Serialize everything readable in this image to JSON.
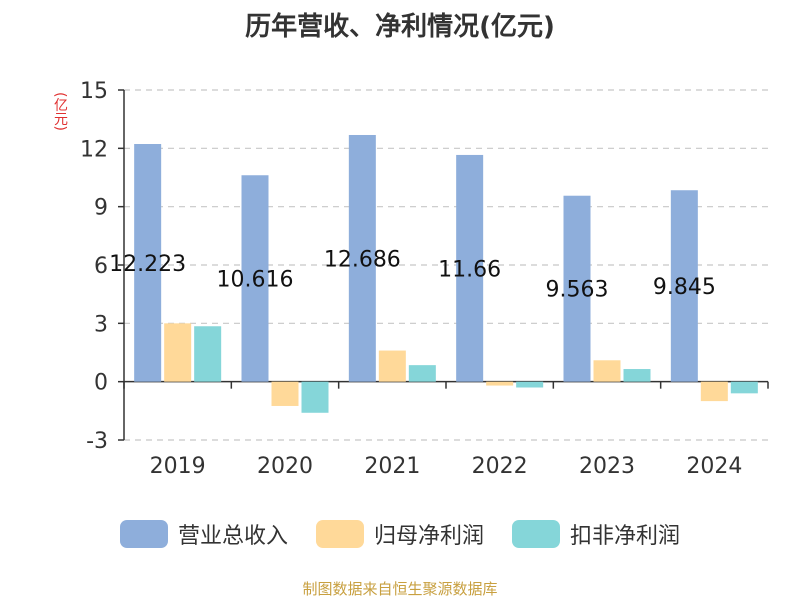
{
  "title": "历年营收、净利情况(亿元)",
  "unit_label": "(亿元)",
  "source": "制图数据来自恒生聚源数据库",
  "colors": {
    "revenue": "#8eaedb",
    "net_profit": "#ffd999",
    "deducted_profit": "#85d6d9",
    "axis": "#333333",
    "grid": "#c8c8c8"
  },
  "chart_data": {
    "type": "bar",
    "categories": [
      "2019",
      "2020",
      "2021",
      "2022",
      "2023",
      "2024"
    ],
    "series": [
      {
        "name": "营业总收入",
        "values": [
          12.223,
          10.616,
          12.686,
          11.66,
          9.563,
          9.845
        ],
        "labels": [
          "12.223",
          "10.616",
          "12.686",
          "11.66",
          "9.563",
          "9.845"
        ]
      },
      {
        "name": "归母净利润",
        "values": [
          3.0,
          -1.25,
          1.6,
          -0.2,
          1.1,
          -1.0
        ]
      },
      {
        "name": "扣非净利润",
        "values": [
          2.85,
          -1.6,
          0.85,
          -0.3,
          0.65,
          -0.6
        ]
      }
    ],
    "ylim": [
      -3,
      15
    ],
    "yticks": [
      -3,
      0,
      3,
      6,
      9,
      12,
      15
    ],
    "ylabel": "(亿元)",
    "grid": true,
    "legend": "bottom"
  }
}
